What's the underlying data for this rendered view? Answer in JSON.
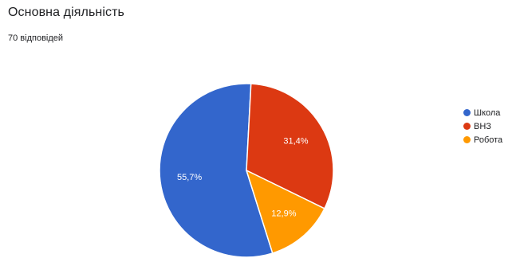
{
  "title": "Основна діяльність",
  "response_count": "70 відповідей",
  "colors": {
    "school": "#3366cc",
    "university": "#dc3912",
    "work": "#ff9900"
  },
  "chart_data": {
    "type": "pie",
    "title": "Основна діяльність",
    "slices": [
      {
        "label": "Школа",
        "value": 55.7,
        "display": "55,7%",
        "color": "#3366cc"
      },
      {
        "label": "ВНЗ",
        "value": 31.4,
        "display": "31,4%",
        "color": "#dc3912"
      },
      {
        "label": "Робота",
        "value": 12.9,
        "display": "12,9%",
        "color": "#ff9900"
      }
    ],
    "legend_position": "right"
  }
}
